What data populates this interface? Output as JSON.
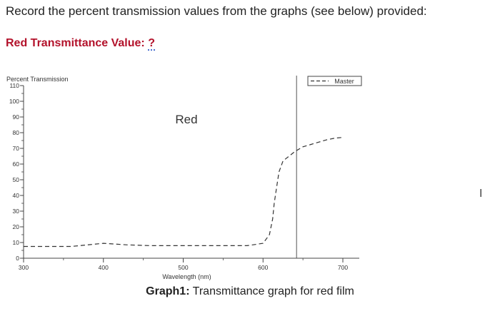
{
  "instruction": "Record the percent transmission values from the graphs (see below) provided:",
  "red_label": {
    "text": "Red Transmittance Value:",
    "answer": "?"
  },
  "cursor_icon": "text-cursor-icon",
  "caption": {
    "prefix": "Graph1:",
    "text": " Transmittance graph for red film"
  },
  "chart_data": {
    "type": "line",
    "title": "Red",
    "ylabel": "Percent Transmission",
    "xlabel": "Wavelength (nm)",
    "xlim": [
      300,
      700
    ],
    "ylim": [
      0,
      110
    ],
    "yticks": [
      0,
      10,
      20,
      30,
      40,
      50,
      60,
      70,
      80,
      90,
      100,
      110
    ],
    "xticks": [
      300,
      400,
      500,
      600,
      700
    ],
    "legend": "top-right",
    "series": [
      {
        "name": "Master",
        "style": "dashed",
        "color": "#333333",
        "x": [
          300,
          330,
          360,
          380,
          400,
          430,
          460,
          500,
          540,
          580,
          600,
          608,
          612,
          614,
          617,
          620,
          625,
          630,
          640,
          650,
          660,
          670,
          680,
          690,
          700
        ],
        "y": [
          7.5,
          7.5,
          7.5,
          8.5,
          9.5,
          8.5,
          8.0,
          8.0,
          8.0,
          8.0,
          9.5,
          15,
          25,
          35,
          45,
          55,
          62,
          64,
          68,
          71,
          72.5,
          74,
          75.5,
          76.5,
          77
        ]
      }
    ],
    "vline_x": 642
  }
}
